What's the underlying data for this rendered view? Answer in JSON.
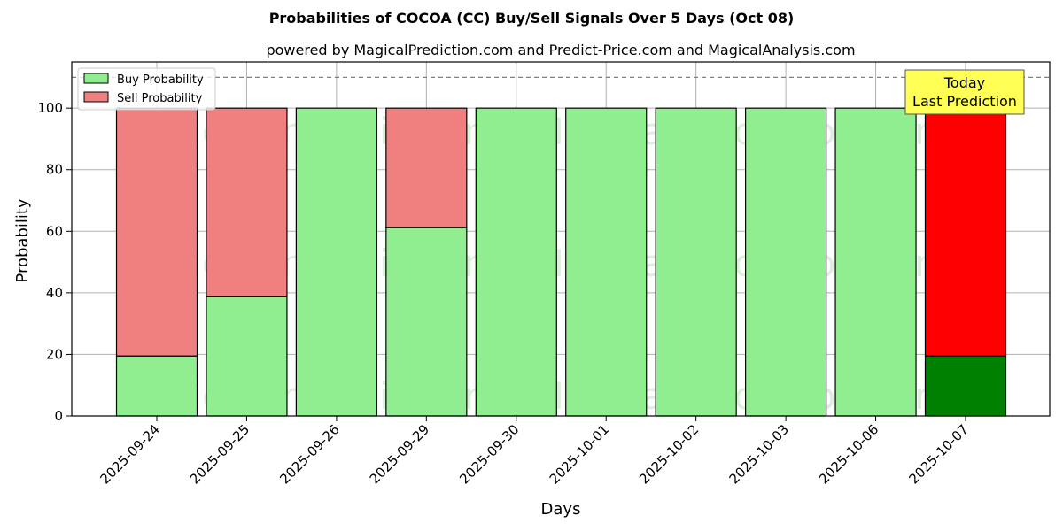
{
  "chart_data": {
    "type": "bar",
    "stacked": true,
    "title": "Probabilities of COCOA (CC) Buy/Sell Signals Over 5 Days (Oct 08)",
    "subtitle": "powered by MagicalPrediction.com and Predict-Price.com and MagicalAnalysis.com",
    "xlabel": "Days",
    "ylabel": "Probability",
    "ylim": [
      0,
      115
    ],
    "yticks": [
      0,
      20,
      40,
      60,
      80,
      100
    ],
    "grid": true,
    "legend_position": "top-left",
    "reference_line": 110,
    "categories": [
      "2025-09-24",
      "2025-09-25",
      "2025-09-26",
      "2025-09-29",
      "2025-09-30",
      "2025-10-01",
      "2025-10-02",
      "2025-10-03",
      "2025-10-06",
      "2025-10-07"
    ],
    "series": [
      {
        "name": "Buy Probability",
        "color": "#90ee90",
        "values": [
          19.5,
          38.7,
          100,
          61.2,
          100,
          100,
          100,
          100,
          100,
          19.5
        ]
      },
      {
        "name": "Sell Probability",
        "color": "#f08080",
        "values": [
          80.5,
          61.3,
          0,
          38.8,
          0,
          0,
          0,
          0,
          0,
          80.5
        ]
      }
    ],
    "highlight": {
      "index": 9,
      "buy_color": "#008000",
      "sell_color": "#ff0000",
      "label_line1": "Today",
      "label_line2": "Last Prediction",
      "label_bg": "#ffff55"
    },
    "watermarks": [
      "MagicalAnalysis.com",
      "MagicalPrediction.com"
    ]
  }
}
